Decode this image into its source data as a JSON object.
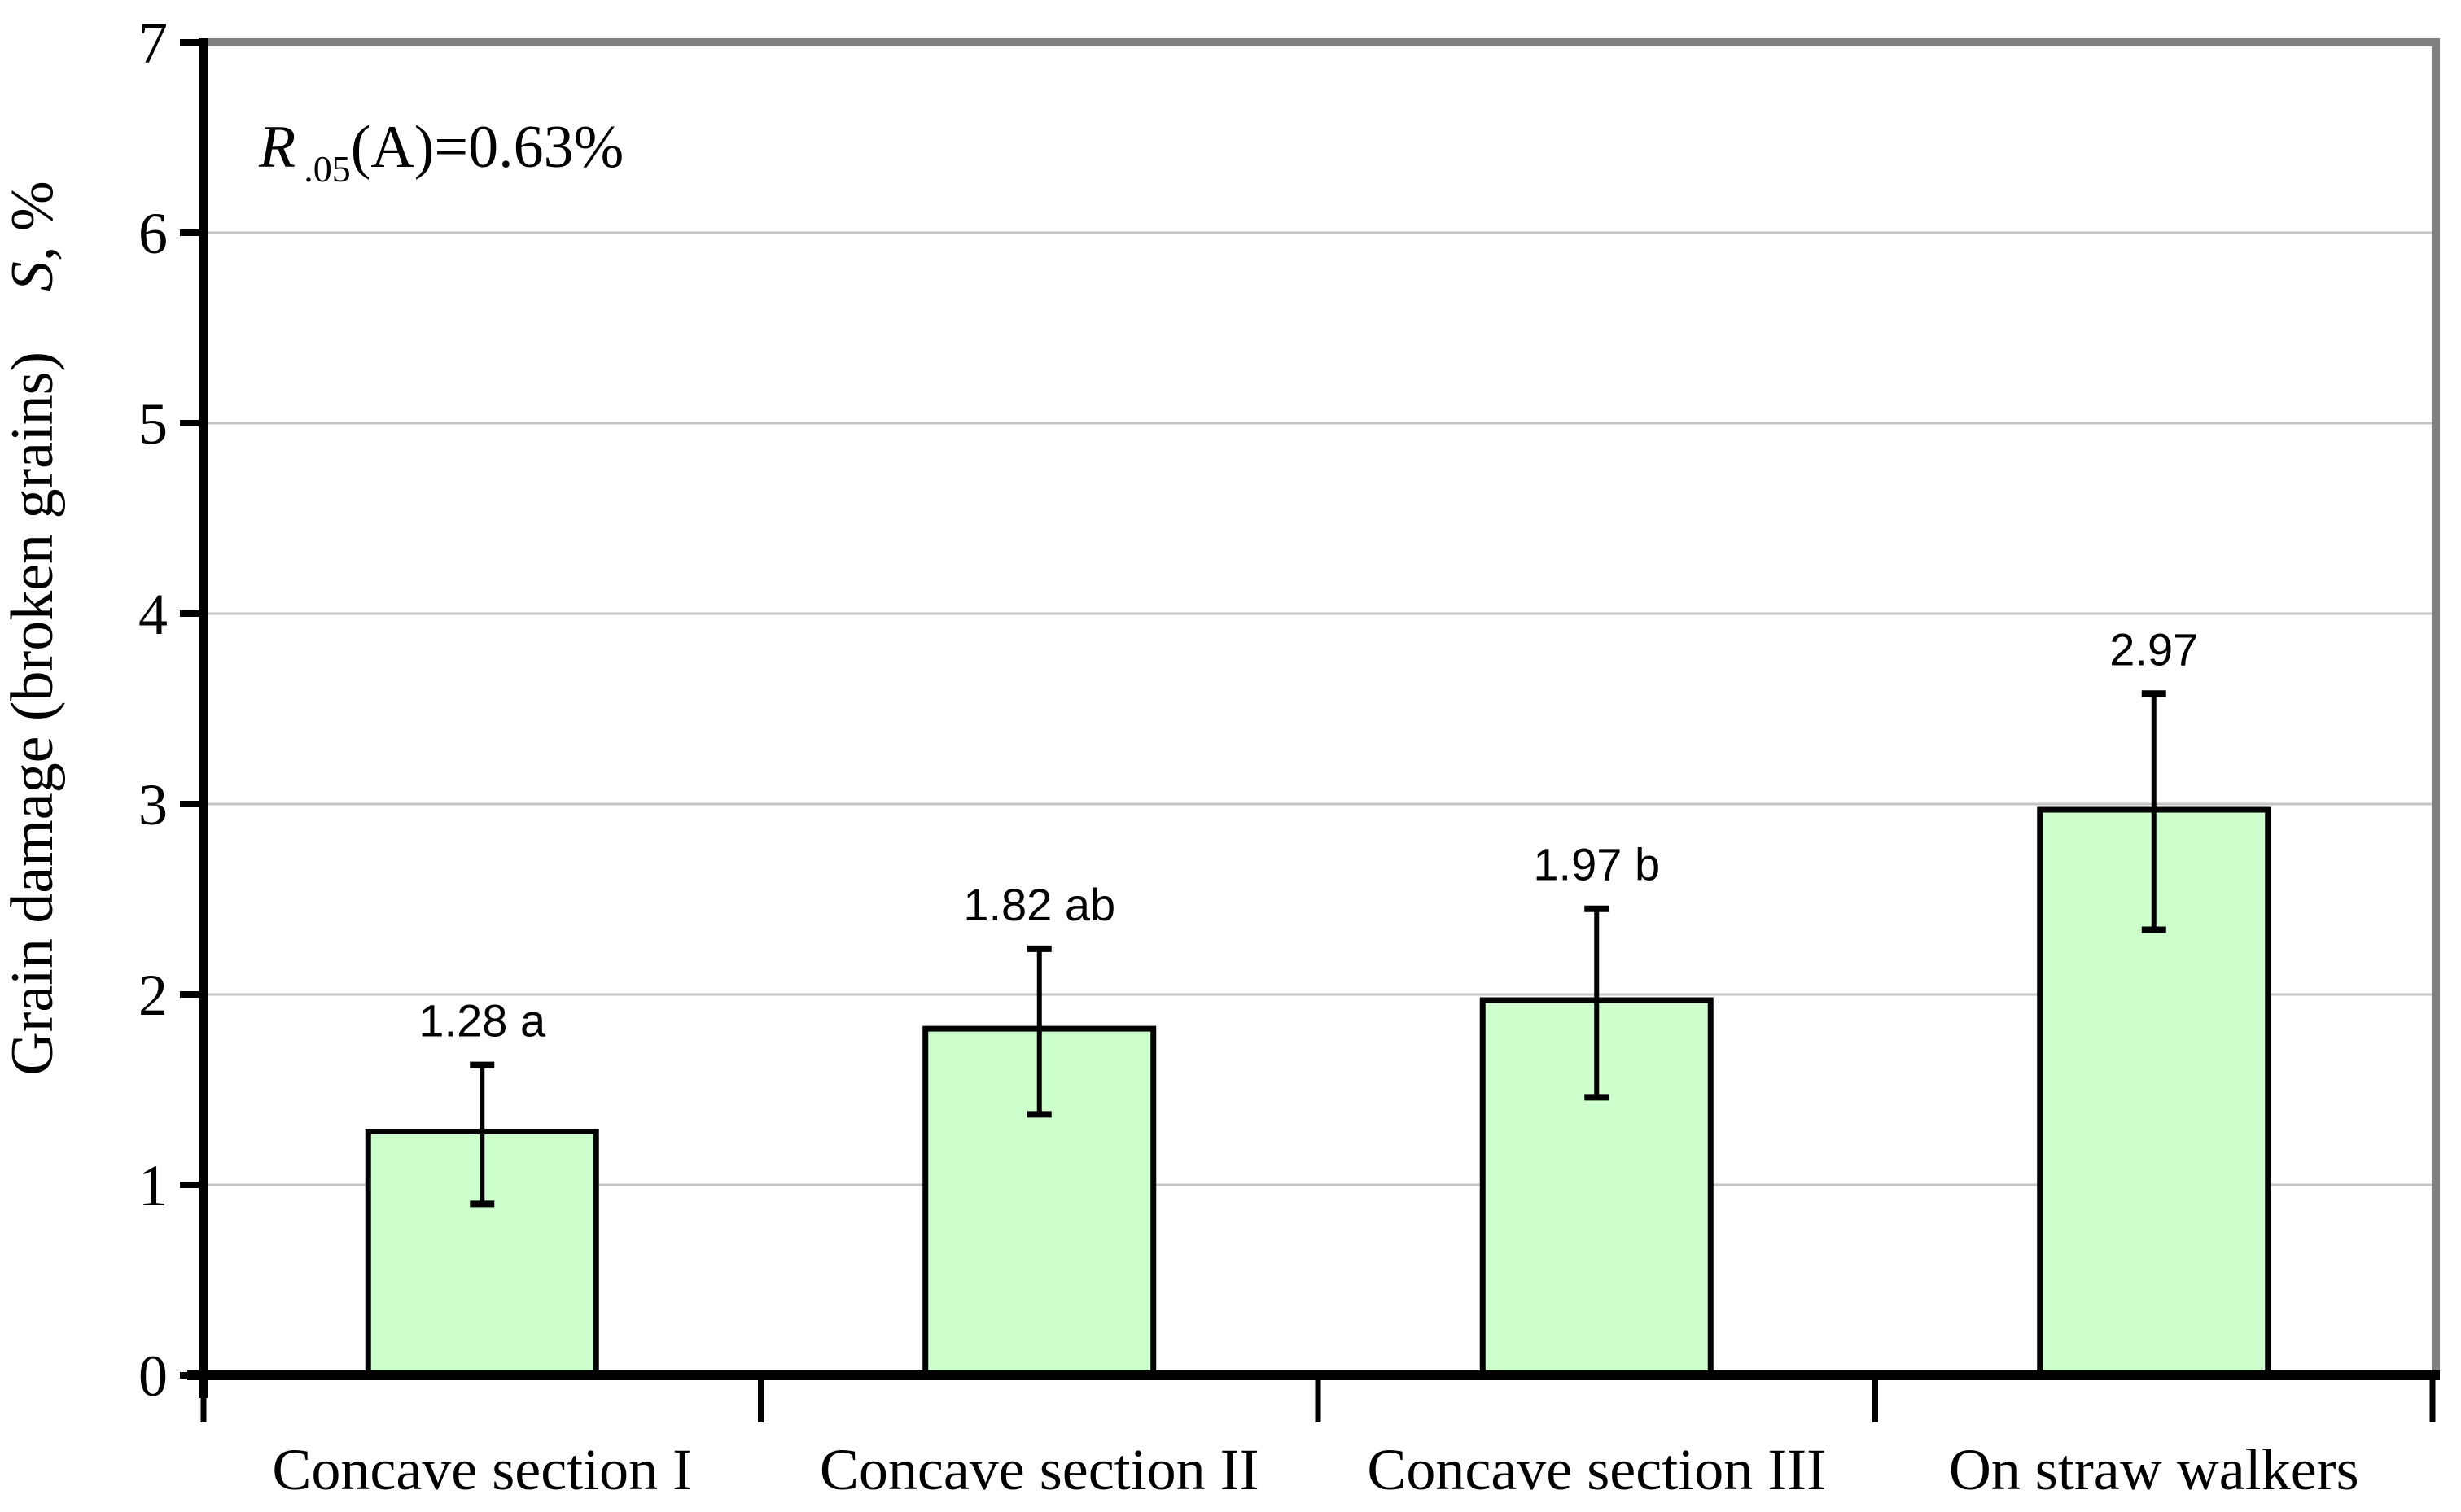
{
  "chart_data": {
    "type": "bar",
    "title": "",
    "xlabel": "",
    "ylabel": "Grain damage (broken grains) S, %",
    "ylabel_main": "Grain damage (broken grains)",
    "ylabel_symbol": "S",
    "ylabel_unit": ", %",
    "annotation": {
      "lead": "R",
      "subscript": ".05",
      "rest": "(A)=0.63%"
    },
    "categories": [
      "Concave section I",
      "Concave section II",
      "Concave section III",
      "On straw walkers"
    ],
    "values": [
      1.28,
      1.82,
      1.97,
      2.97
    ],
    "bar_labels": [
      "1.28 a",
      "1.82 ab",
      "1.97 b",
      "2.97"
    ],
    "error_upper": [
      1.63,
      2.24,
      2.45,
      3.58
    ],
    "error_lower": [
      0.9,
      1.37,
      1.46,
      2.34
    ],
    "ylim": [
      0,
      7
    ],
    "yticks": [
      0,
      1,
      2,
      3,
      4,
      5,
      6,
      7
    ],
    "grid": true,
    "legend_position": "none",
    "colors": {
      "bar_fill": "#ccffcc",
      "bar_stroke": "#000000",
      "gridline": "#c6c6c6",
      "plot_border": "#7f7f7f",
      "axis": "#000000",
      "text": "#000000",
      "background": "#ffffff"
    }
  }
}
